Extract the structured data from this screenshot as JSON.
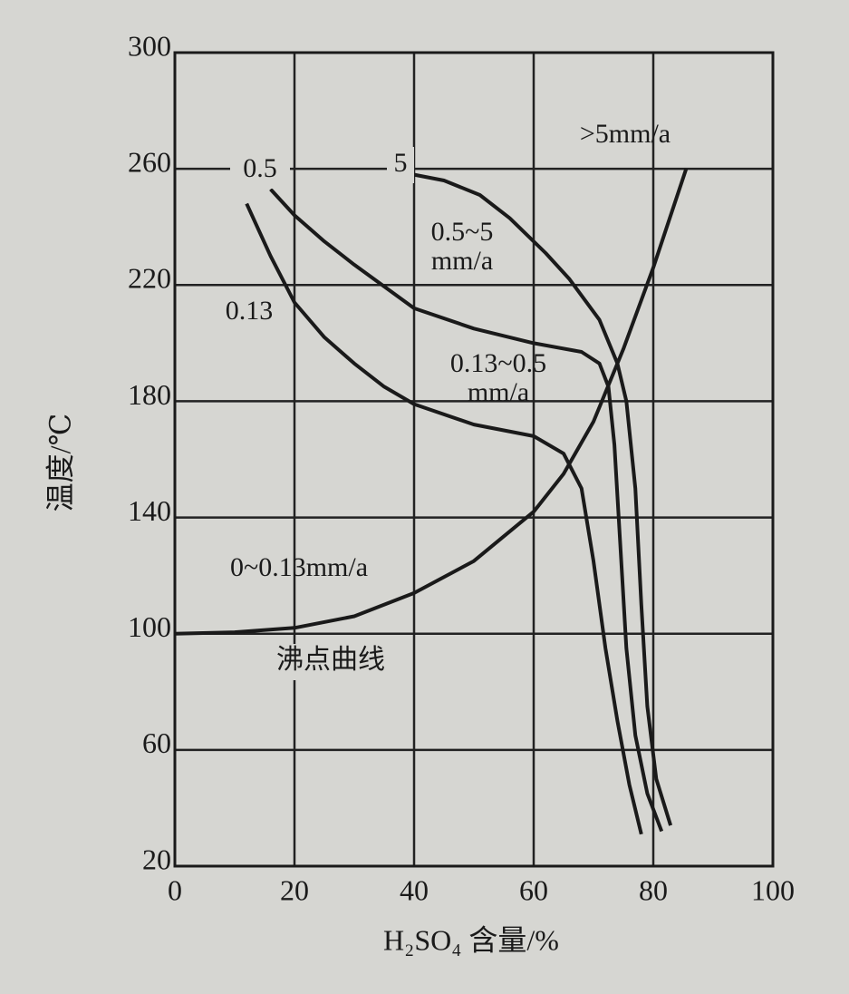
{
  "chart_data": {
    "type": "line",
    "x_label": "H₂SO₄ 含量/%",
    "y_label": "温度/℃",
    "xlim": [
      0,
      100
    ],
    "ylim": [
      20,
      300
    ],
    "xticks": [
      0,
      20,
      40,
      60,
      80,
      100
    ],
    "yticks": [
      20,
      60,
      100,
      140,
      180,
      220,
      260,
      300
    ],
    "grid": true,
    "series": [
      {
        "name": "沸点曲线",
        "color": "#1a1a1a",
        "x": [
          0,
          10,
          20,
          30,
          40,
          50,
          60,
          65,
          70,
          75,
          80,
          85.5
        ],
        "values": [
          100,
          100.5,
          102,
          106,
          114,
          125,
          142,
          155,
          173,
          198,
          226,
          260
        ]
      },
      {
        "name": "0.13",
        "color": "#1a1a1a",
        "x": [
          12,
          16,
          20,
          25,
          30,
          35,
          40,
          50,
          60,
          65,
          68,
          70,
          72,
          74,
          76,
          78
        ],
        "values": [
          248,
          230,
          214,
          202,
          193,
          185,
          179,
          172,
          168,
          162,
          150,
          125,
          95,
          70,
          48,
          31
        ]
      },
      {
        "name": "0.5",
        "color": "#1a1a1a",
        "x": [
          16,
          20,
          25,
          30,
          40,
          50,
          60,
          68,
          71,
          72.5,
          73.5,
          74.5,
          75.5,
          77,
          79,
          81.4
        ],
        "values": [
          253,
          244,
          235,
          227,
          212,
          205,
          200,
          197,
          193,
          185,
          165,
          130,
          95,
          65,
          45,
          32
        ]
      },
      {
        "name": "5",
        "color": "#1a1a1a",
        "x": [
          40,
          45,
          51,
          56,
          62,
          66,
          71,
          74,
          75.5,
          77,
          78,
          79,
          80.5,
          82.9
        ],
        "values": [
          258,
          256,
          251,
          243,
          231,
          222,
          208,
          193,
          180,
          150,
          110,
          75,
          50,
          34
        ]
      }
    ],
    "annotations": [
      [
        ">5mm/a"
      ],
      [
        "0.5~5",
        "mm/a"
      ],
      [
        "0.13~0.5",
        "mm/a"
      ],
      [
        "0~0.13mm/a"
      ]
    ]
  }
}
